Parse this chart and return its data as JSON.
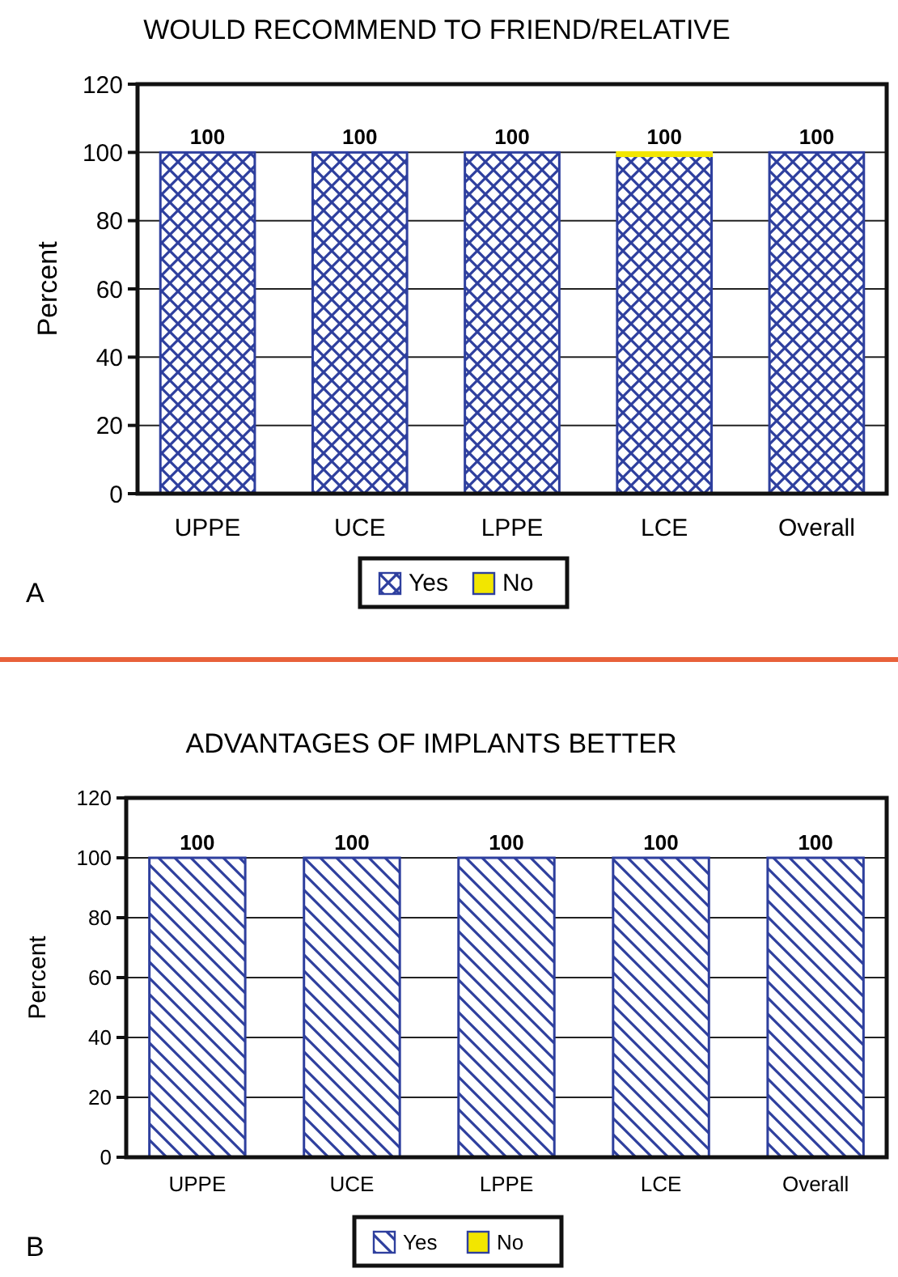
{
  "chart_data": [
    {
      "type": "bar",
      "title": "WOULD RECOMMEND TO FRIEND/RELATIVE",
      "ylabel": "Percent",
      "categories": [
        "UPPE",
        "UCE",
        "LPPE",
        "LCE",
        "Overall"
      ],
      "stacked": true,
      "series": [
        {
          "name": "Yes",
          "color": "#2e3f9e",
          "values": [
            100,
            100,
            100,
            99,
            100
          ]
        },
        {
          "name": "No",
          "color": "#f2e600",
          "values": [
            0,
            0,
            0,
            1,
            0
          ]
        }
      ],
      "totals": [
        "100",
        "100",
        "100",
        "100",
        "100"
      ],
      "ylim": [
        0,
        120
      ],
      "yticks": [
        0,
        20,
        40,
        60,
        80,
        100,
        120
      ],
      "grid": "y",
      "legend": "bottom",
      "annotations": [
        "A"
      ]
    },
    {
      "type": "bar",
      "title": "ADVANTAGES OF IMPLANTS BETTER",
      "ylabel": "Percent",
      "categories": [
        "UPPE",
        "UCE",
        "LPPE",
        "LCE",
        "Overall"
      ],
      "stacked": true,
      "series": [
        {
          "name": "Yes",
          "color": "#2e3f9e",
          "values": [
            100,
            100,
            100,
            100,
            100
          ]
        },
        {
          "name": "No",
          "color": "#f2e600",
          "values": [
            0,
            0,
            0,
            0,
            0
          ]
        }
      ],
      "totals": [
        "100",
        "100",
        "100",
        "100",
        "100"
      ],
      "ylim": [
        0,
        120
      ],
      "yticks": [
        0,
        20,
        40,
        60,
        80,
        100,
        120
      ],
      "grid": "y",
      "legend": "bottom",
      "annotations": [
        "B"
      ]
    }
  ]
}
